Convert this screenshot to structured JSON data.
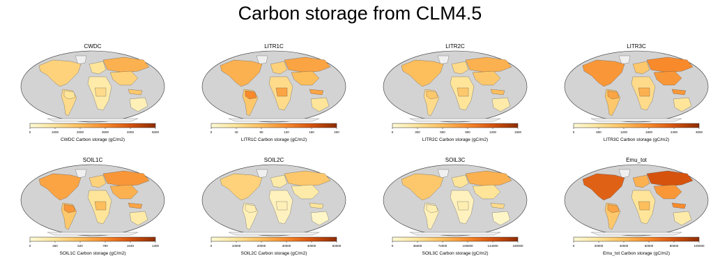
{
  "figure": {
    "title": "Carbon storage from CLM4.5"
  },
  "colors": {
    "ocean": "#d3d3d3",
    "no_data": "#f0f0f0",
    "cmap": [
      "#fffbd6",
      "#fee59a",
      "#fdbe5c",
      "#f88a2c",
      "#d6530e",
      "#8f2d04"
    ]
  },
  "chart_data": [
    {
      "type": "heatmap",
      "projection": "robinson",
      "title": "CWDC",
      "colorbar_label": "CWDC Carbon storage (gC/m2)",
      "ticks": [
        "0",
        "1000",
        "2000",
        "3000",
        "4000",
        "5000"
      ],
      "range": [
        0,
        5000
      ],
      "cmap": "YlOrBr",
      "region_levels": {
        "north_america": 0.3,
        "south_america": 0.25,
        "amazon": 0.2,
        "europe": 0.2,
        "siberia": 0.45,
        "africa": 0.15,
        "central_africa": 0.25,
        "south_asia": 0.3,
        "indonesia": 0.35,
        "australia": 0.1
      }
    },
    {
      "type": "heatmap",
      "projection": "robinson",
      "title": "LITR1C",
      "colorbar_label": "LITR1C Carbon storage (gC/m2)",
      "ticks": [
        "0",
        "40",
        "80",
        "120",
        "160",
        "200"
      ],
      "range": [
        0,
        200
      ],
      "cmap": "YlOrBr",
      "region_levels": {
        "north_america": 0.45,
        "south_america": 0.35,
        "amazon": 0.6,
        "europe": 0.3,
        "siberia": 0.5,
        "africa": 0.25,
        "central_africa": 0.5,
        "south_asia": 0.4,
        "indonesia": 0.5,
        "australia": 0.2
      }
    },
    {
      "type": "heatmap",
      "projection": "robinson",
      "title": "LITR2C",
      "colorbar_label": "LITR2C Carbon storage (gC/m2)",
      "ticks": [
        "0",
        "300",
        "600",
        "900",
        "1200",
        "1500"
      ],
      "range": [
        0,
        1500
      ],
      "cmap": "YlOrBr",
      "region_levels": {
        "north_america": 0.4,
        "south_america": 0.25,
        "amazon": 0.35,
        "europe": 0.25,
        "siberia": 0.45,
        "africa": 0.2,
        "central_africa": 0.35,
        "south_asia": 0.35,
        "indonesia": 0.4,
        "australia": 0.15
      }
    },
    {
      "type": "heatmap",
      "projection": "robinson",
      "title": "LITR3C",
      "colorbar_label": "LITR3C Carbon storage (gC/m2)",
      "ticks": [
        "0",
        "600",
        "1200",
        "1800",
        "2400",
        "3000"
      ],
      "range": [
        0,
        3000
      ],
      "cmap": "YlOrBr",
      "region_levels": {
        "north_america": 0.55,
        "south_america": 0.35,
        "amazon": 0.5,
        "europe": 0.35,
        "siberia": 0.6,
        "africa": 0.25,
        "central_africa": 0.45,
        "south_asia": 0.55,
        "indonesia": 0.55,
        "australia": 0.2
      }
    },
    {
      "type": "heatmap",
      "projection": "robinson",
      "title": "SOIL1C",
      "colorbar_label": "SOIL1C Carbon storage (gC/m2)",
      "ticks": [
        "0",
        "260",
        "520",
        "780",
        "1040",
        "1300"
      ],
      "range": [
        0,
        1300
      ],
      "cmap": "YlOrBr",
      "region_levels": {
        "north_america": 0.5,
        "south_america": 0.35,
        "amazon": 0.55,
        "europe": 0.3,
        "siberia": 0.55,
        "africa": 0.2,
        "central_africa": 0.4,
        "south_asia": 0.45,
        "indonesia": 0.5,
        "australia": 0.15
      }
    },
    {
      "type": "heatmap",
      "projection": "robinson",
      "title": "SOIL2C",
      "colorbar_label": "SOIL2C Carbon storage (gC/m2)",
      "ticks": [
        "0",
        "10000",
        "20000",
        "30000",
        "40000",
        "50000"
      ],
      "range": [
        0,
        50000
      ],
      "cmap": "YlOrBr",
      "region_levels": {
        "north_america": 0.3,
        "south_america": 0.1,
        "amazon": 0.12,
        "europe": 0.15,
        "siberia": 0.35,
        "africa": 0.08,
        "central_africa": 0.1,
        "south_asia": 0.15,
        "indonesia": 0.2,
        "australia": 0.05
      }
    },
    {
      "type": "heatmap",
      "projection": "robinson",
      "title": "SOIL3C",
      "colorbar_label": "SOIL3C Carbon storage (gC/m2)",
      "ticks": [
        "0",
        "36000",
        "72000",
        "108000",
        "144000",
        "180000"
      ],
      "range": [
        0,
        180000
      ],
      "cmap": "YlOrBr",
      "region_levels": {
        "north_america": 0.35,
        "south_america": 0.1,
        "amazon": 0.12,
        "europe": 0.2,
        "siberia": 0.45,
        "africa": 0.08,
        "central_africa": 0.12,
        "south_asia": 0.2,
        "indonesia": 0.25,
        "australia": 0.05
      }
    },
    {
      "type": "heatmap",
      "projection": "robinson",
      "title": "Emu_tot",
      "colorbar_label": "Emu_tot Carbon storage (gC/m2)",
      "ticks": [
        "0",
        "20000",
        "40000",
        "60000",
        "80000",
        "100000"
      ],
      "range": [
        0,
        100000
      ],
      "cmap": "YlOrBr",
      "region_levels": {
        "north_america": 0.75,
        "south_america": 0.35,
        "amazon": 0.5,
        "europe": 0.45,
        "siberia": 0.8,
        "africa": 0.2,
        "central_africa": 0.4,
        "south_asia": 0.55,
        "indonesia": 0.6,
        "australia": 0.15
      }
    }
  ]
}
